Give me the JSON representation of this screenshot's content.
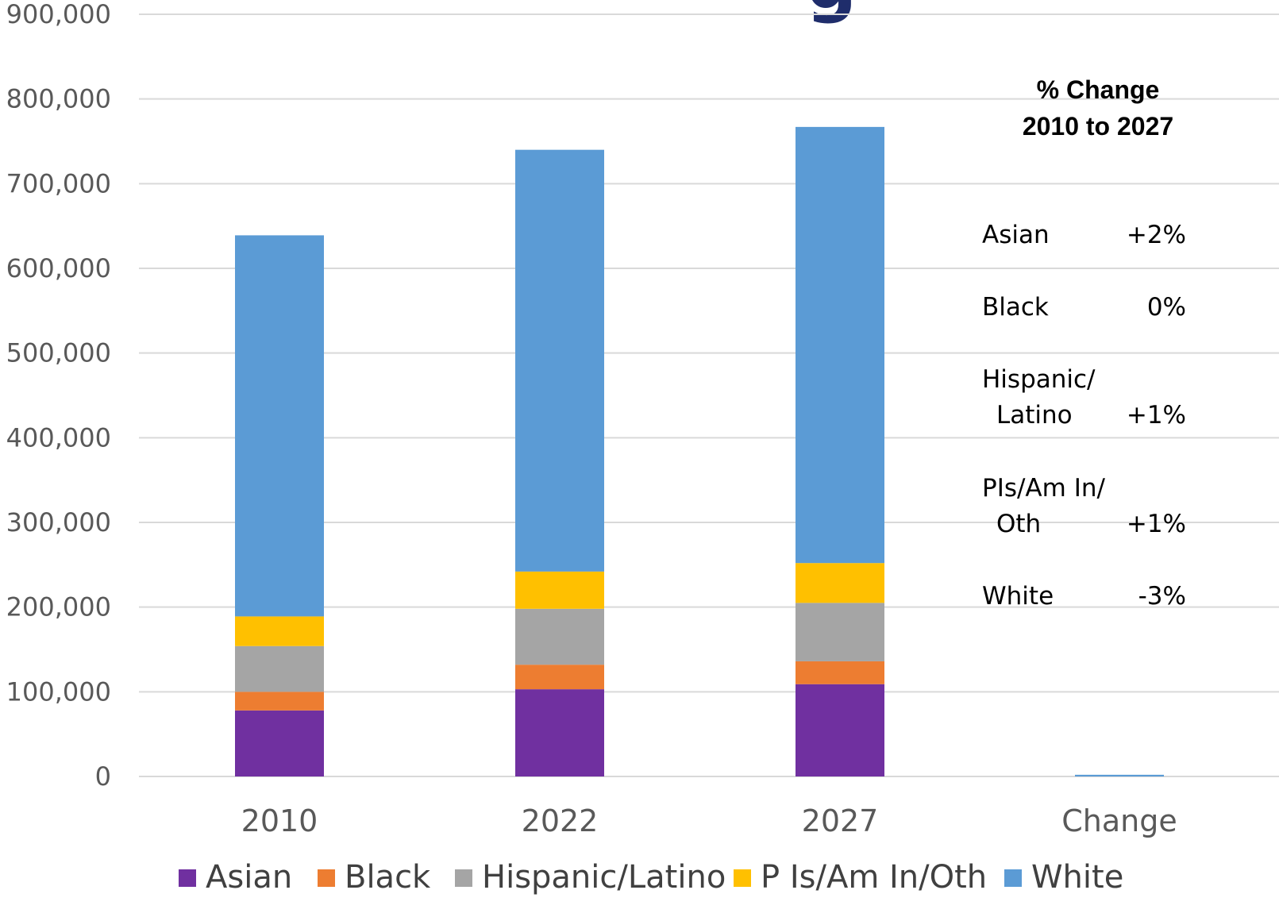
{
  "colors": {
    "Asian": "#7030a0",
    "Black": "#ed7d31",
    "Hispanic/Latino": "#a5a5a5",
    "P Is/Am In/Oth": "#ffc000",
    "White": "#5b9bd5",
    "title": "#1f2d6b",
    "gridline": "#d9d9d9",
    "tick_text": "#595959"
  },
  "chart_data": {
    "type": "bar",
    "stacked": true,
    "categories": [
      "2010",
      "2022",
      "2027",
      "Change"
    ],
    "ylim": [
      0,
      900000
    ],
    "yticks": [
      0,
      100000,
      200000,
      300000,
      400000,
      500000,
      600000,
      700000,
      800000,
      900000
    ],
    "ytick_labels": [
      "0",
      "100,000",
      "200,000",
      "300,000",
      "400,000",
      "500,000",
      "600,000",
      "700,000",
      "800,000",
      "900,000"
    ],
    "grid": true,
    "legend_position": "bottom",
    "series": [
      {
        "name": "Asian",
        "values": [
          78000,
          103000,
          109000,
          0
        ]
      },
      {
        "name": "Black",
        "values": [
          22000,
          29000,
          27000,
          0
        ]
      },
      {
        "name": "Hispanic/Latino",
        "values": [
          54000,
          66000,
          69000,
          0
        ]
      },
      {
        "name": "P Is/Am In/Oth",
        "values": [
          35000,
          44000,
          47000,
          0
        ]
      },
      {
        "name": "White",
        "values": [
          450000,
          498000,
          515000,
          2000
        ]
      }
    ],
    "annotation": {
      "title_line1": "% Change",
      "title_line2": "2010 to 2027",
      "rows": [
        {
          "label": "Asian",
          "value": "+2%"
        },
        {
          "label": "Black",
          "value": "0%"
        },
        {
          "label": "Hispanic/",
          "label2": "Latino",
          "value": "+1%"
        },
        {
          "label": "PIs/Am In/",
          "label2": "Oth",
          "value": "+1%"
        },
        {
          "label": "White",
          "value": "-3%"
        }
      ]
    }
  }
}
